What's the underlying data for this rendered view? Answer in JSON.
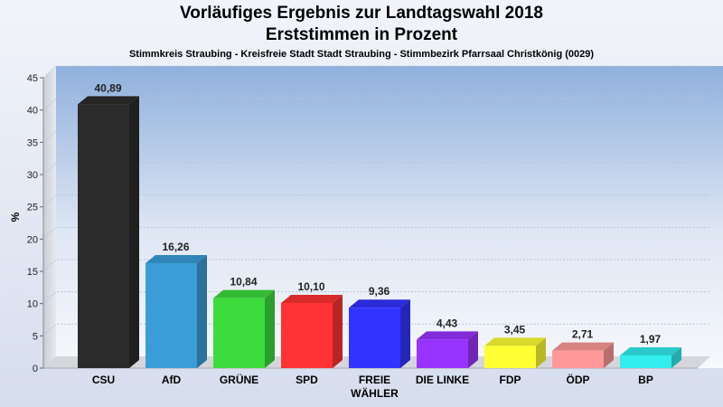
{
  "chart_data": {
    "type": "bar",
    "title": "Vorläufiges Ergebnis zur Landtagswahl 2018",
    "subtitle": "Erststimmen in Prozent",
    "caption": "Stimmkreis Straubing - Kreisfreie Stadt Stadt Straubing - Stimmbezirk Pfarrsaal Christkönig (0029)",
    "xlabel": "",
    "ylabel": "%",
    "ylim": [
      0,
      45
    ],
    "yticks": [
      0,
      5,
      10,
      15,
      20,
      25,
      30,
      35,
      40,
      45
    ],
    "grid": true,
    "categories": [
      "CSU",
      "AfD",
      "GRÜNE",
      "SPD",
      "FREIE WÄHLER",
      "DIE LINKE",
      "FDP",
      "ÖDP",
      "BP"
    ],
    "category_lines": [
      [
        "CSU"
      ],
      [
        "AfD"
      ],
      [
        "GRÜNE"
      ],
      [
        "SPD"
      ],
      [
        "FREIE",
        "WÄHLER"
      ],
      [
        "DIE LINKE"
      ],
      [
        "FDP"
      ],
      [
        "ÖDP"
      ],
      [
        "BP"
      ]
    ],
    "values": [
      40.89,
      16.26,
      10.84,
      10.1,
      9.36,
      4.43,
      3.45,
      2.71,
      1.97
    ],
    "value_labels": [
      "40,89",
      "16,26",
      "10,84",
      "10,10",
      "9,36",
      "4,43",
      "3,45",
      "2,71",
      "1,97"
    ],
    "colors": [
      "#2b2b2b",
      "#3a9dd8",
      "#3ddc3d",
      "#ff3333",
      "#3333ff",
      "#9933ff",
      "#ffff33",
      "#ff9999",
      "#33eeee"
    ]
  }
}
